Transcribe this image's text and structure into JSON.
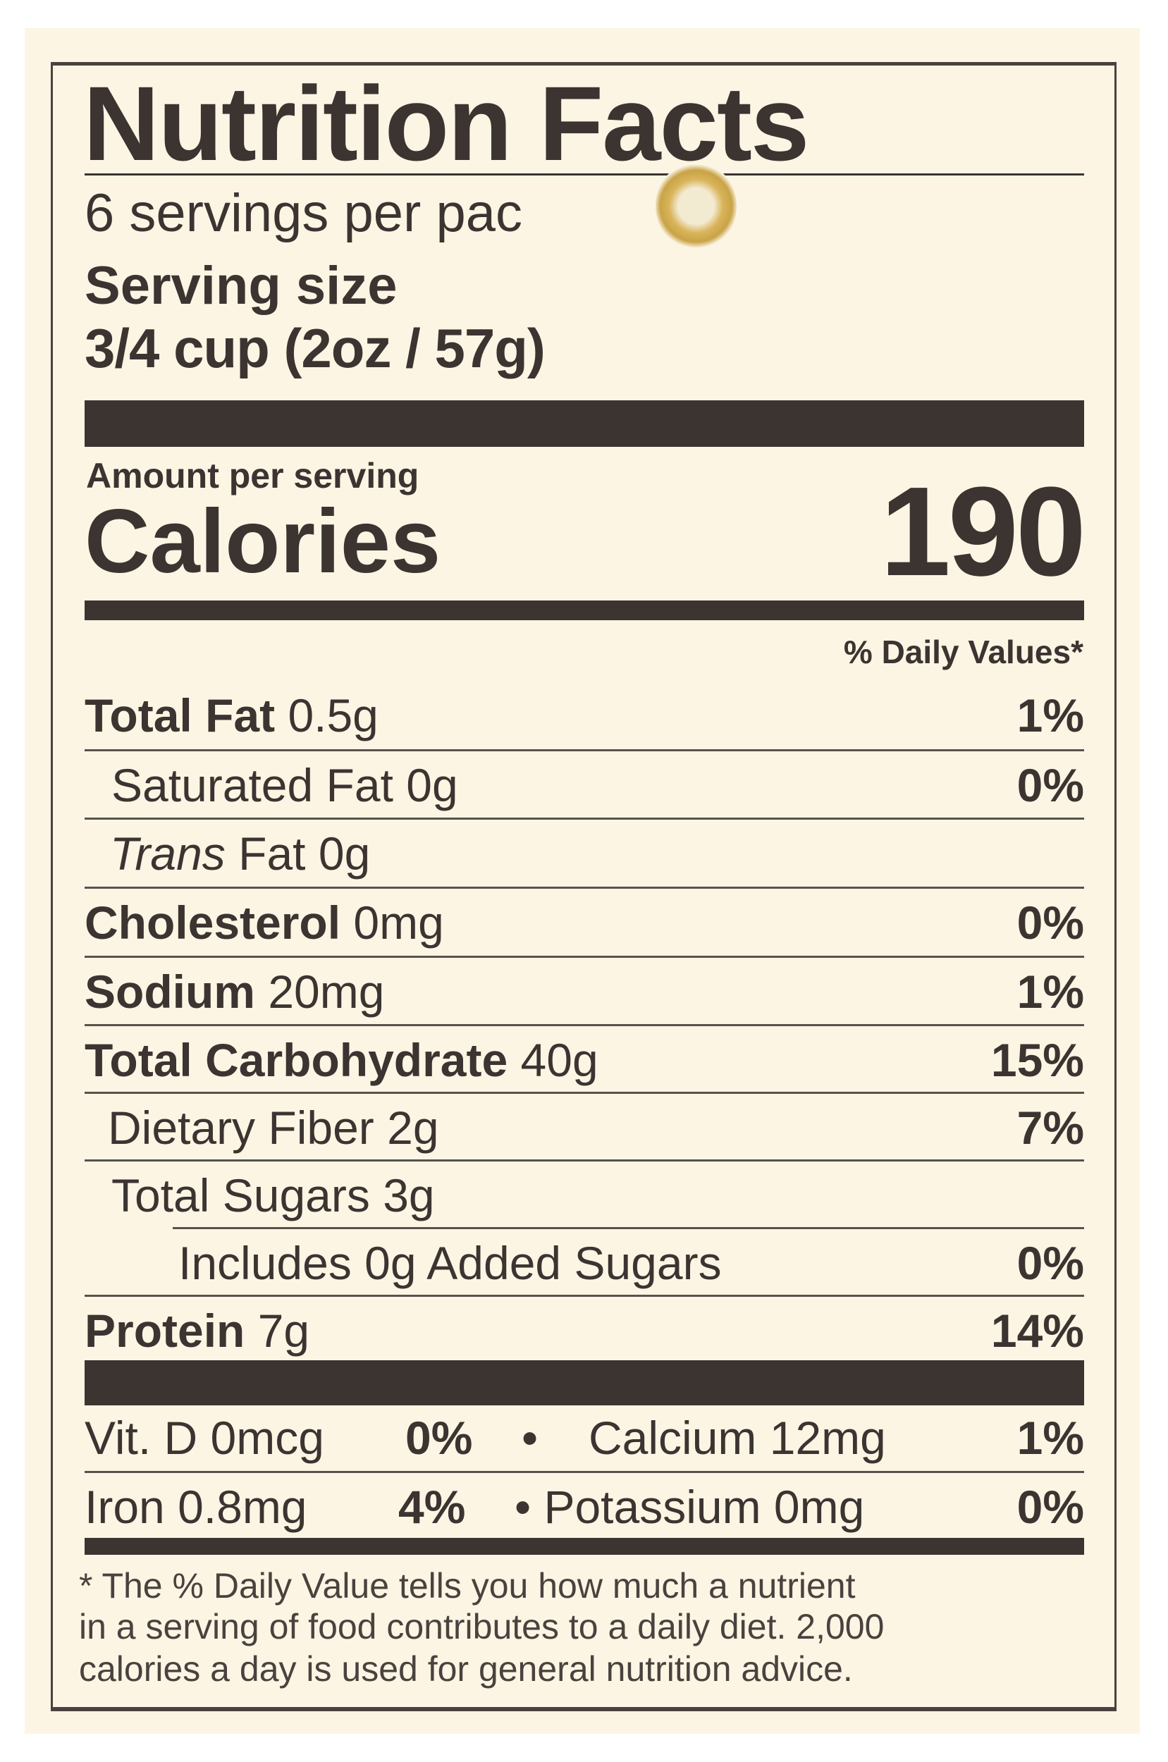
{
  "label": {
    "title": "Nutrition Facts",
    "servings_per": "6 servings per pac",
    "serving_size_label": "Serving size",
    "serving_size_value": "3/4 cup (2oz / 57g)",
    "amount_per_serving": "Amount per serving",
    "calories_label": "Calories",
    "calories_value": "190",
    "daily_values_header": "% Daily Values*",
    "nutrients": [
      {
        "name": "Total Fat",
        "amount": "0.5g",
        "dv": "1%"
      },
      {
        "name": "Saturated Fat",
        "amount": "0g",
        "dv": "0%"
      },
      {
        "name": "Trans",
        "name_rest": "Fat",
        "amount": "0g",
        "dv": ""
      },
      {
        "name": "Cholesterol",
        "amount": "0mg",
        "dv": "0%"
      },
      {
        "name": "Sodium",
        "amount": "20mg",
        "dv": "1%"
      },
      {
        "name": "Total Carbohydrate",
        "amount": "40g",
        "dv": "15%"
      },
      {
        "name": "Dietary Fiber",
        "amount": "2g",
        "dv": "7%"
      },
      {
        "name": "Total Sugars",
        "amount": "3g",
        "dv": ""
      },
      {
        "name": "Includes 0g Added Sugars",
        "amount": "",
        "dv": "0%"
      },
      {
        "name": "Protein",
        "amount": "7g",
        "dv": "14%"
      }
    ],
    "vitamins": [
      {
        "name": "Vit. D",
        "amount": "0mcg",
        "dv": "0%"
      },
      {
        "name": "Calcium",
        "amount": "12mg",
        "dv": "1%"
      },
      {
        "name": "Iron",
        "amount": "0.8mg",
        "dv": "4%"
      },
      {
        "name": "Potassium",
        "amount": "0mg",
        "dv": "0%"
      }
    ],
    "bullet": "•",
    "footnote": [
      "* The % Daily Value tells you how much a nutrient",
      "in a serving of food contributes to a daily diet. 2,000",
      "calories a day is used for general nutrition advice."
    ]
  },
  "colors": {
    "paper": "#fcf5e4",
    "ink": "#3b3431"
  }
}
